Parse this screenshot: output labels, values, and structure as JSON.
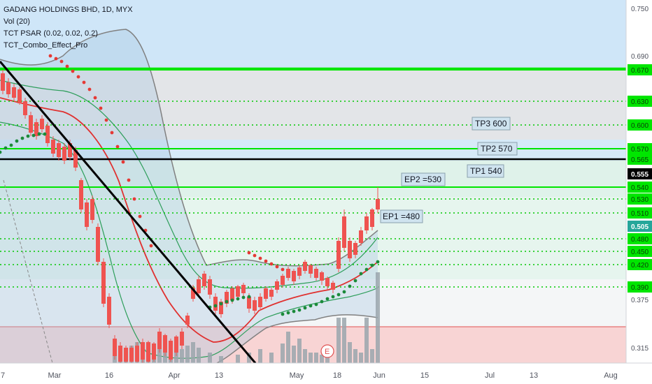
{
  "legend": {
    "title": "GADANG HOLDINGS BHD, 1D, MYX",
    "line2": "Vol (20)",
    "line3": "TCT PSAR (0.02, 0.02, 0.2)",
    "line4": "TCT_Combo_Effect_Pro"
  },
  "colors": {
    "up": "#ef5350",
    "down": "#ef5350",
    "green_line": "#00e600",
    "dotted_green": "#00c800",
    "black_line": "#000000",
    "red_zone": "#f8cccc",
    "blue_zone": "#cfe6f8",
    "psar": "#e53935",
    "psar_up": "#1b8a3a",
    "sma_red": "#e0302f",
    "bb_green": "#2e9e5b",
    "bb_gray": "#808080",
    "volume": "#9aa6ad",
    "price_tag_current": "#000000",
    "price_tag_teal": "#26a69a"
  },
  "chart_data": {
    "type": "candlestick",
    "symbol": "GADANG HOLDINGS BHD",
    "interval": "1D",
    "exchange": "MYX",
    "y_axis": {
      "ticks": [
        "0.750",
        "0.690",
        "0.670",
        "0.630",
        "0.600",
        "0.570",
        "0.565",
        "0.555",
        "0.540",
        "0.530",
        "0.510",
        "0.505",
        "0.480",
        "0.450",
        "0.420",
        "0.390",
        "0.375",
        "0.315"
      ],
      "current_price": "0.555",
      "teal_price": "0.505"
    },
    "x_axis": {
      "ticks": [
        "7",
        "Mar",
        "16",
        "Apr",
        "13",
        "May",
        "18",
        "Jun",
        "15",
        "Jul",
        "13",
        "Aug"
      ]
    },
    "horizontal_levels": [
      {
        "price": 0.67,
        "style": "solid-green"
      },
      {
        "price": 0.57,
        "style": "solid-green"
      },
      {
        "price": 0.565,
        "style": "solid-black"
      },
      {
        "price": 0.54,
        "style": "solid-green"
      },
      {
        "price": 0.63,
        "style": "dotted-green"
      },
      {
        "price": 0.6,
        "style": "dotted-green"
      },
      {
        "price": 0.53,
        "style": "dotted-green"
      },
      {
        "price": 0.51,
        "style": "dotted-green"
      },
      {
        "price": 0.48,
        "style": "dotted-green"
      },
      {
        "price": 0.45,
        "style": "dotted-green"
      },
      {
        "price": 0.42,
        "style": "dotted-green"
      },
      {
        "price": 0.39,
        "style": "dotted-green"
      }
    ],
    "annotations": [
      {
        "text": "TP3 600"
      },
      {
        "text": "TP2 570"
      },
      {
        "text": "TP1 540"
      },
      {
        "text": "EP2 =530"
      },
      {
        "text": "EP1 =480"
      }
    ],
    "earnings_marker": "E"
  }
}
